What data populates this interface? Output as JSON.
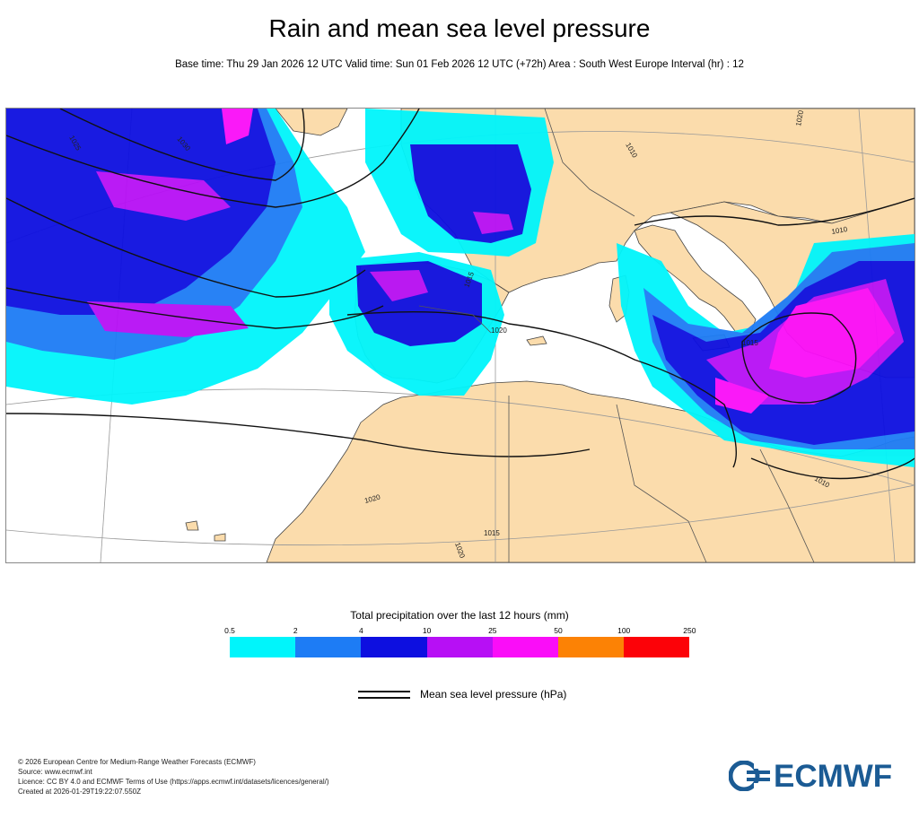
{
  "header": {
    "title": "Rain and mean sea level pressure",
    "subtitle": "Base time: Thu 29 Jan 2026 12 UTC Valid time: Sun 01 Feb 2026 12 UTC (+72h) Area : South West Europe Interval (hr) : 12"
  },
  "map": {
    "isobar_labels": [
      "1025",
      "1030",
      "1015",
      "1020",
      "1010",
      "1015",
      "1020",
      "1010",
      "1020",
      "1015",
      "1020",
      "1010"
    ]
  },
  "legend": {
    "title": "Total precipitation over the last 12 hours (mm)",
    "ticks": [
      "0.5",
      "2",
      "4",
      "10",
      "25",
      "50",
      "100",
      "250"
    ],
    "colors": [
      "#00f5fb",
      "#1d7cf5",
      "#0d0fe0",
      "#b70ff5",
      "#fa0df8",
      "#fc8205",
      "#fc0208"
    ],
    "msl_label": "Mean sea level pressure (hPa)"
  },
  "footer": {
    "lines": [
      "© 2026 European Centre for Medium-Range Weather Forecasts (ECMWF)",
      "Source: www.ecmwf.int",
      "Licence: CC BY 4.0 and ECMWF Terms of Use (https://apps.ecmwf.int/datasets/licences/general/)",
      "Created at 2026-01-29T19:22:07.550Z"
    ]
  },
  "logo": {
    "text": "ECMWF",
    "color": "#1b5b94"
  },
  "colors": {
    "land": "#fbdcac",
    "sea": "#ffffff",
    "isobar": "#111111",
    "border": "#555555"
  }
}
